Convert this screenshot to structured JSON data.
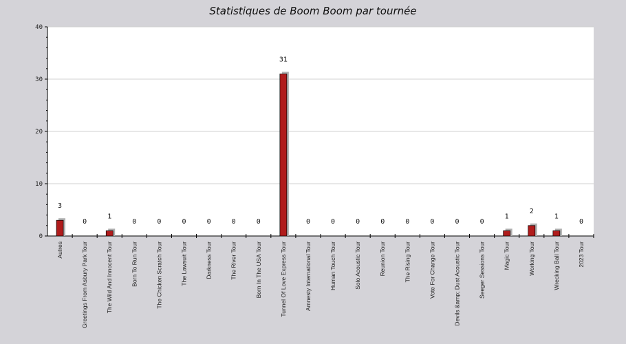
{
  "chart_data": {
    "type": "bar",
    "title": "Statistiques de Boom Boom par tournée",
    "xlabel": "",
    "ylabel": "",
    "ylim": [
      0,
      40
    ],
    "yticks": [
      0,
      10,
      20,
      30,
      40
    ],
    "grid": true,
    "colors": {
      "bar": "#b01c1c",
      "shadow": "#b0b0b0",
      "plot_bg": "#ffffff",
      "page_bg": "#d4d3d8",
      "grid": "#d0d0d0"
    },
    "categories": [
      "Autres",
      "Greetings From Asbury Park Tour",
      "The Wild And Innocent Tour",
      "Born To Run Tour",
      "The Chicken Scratch Tour",
      "The Lawsuit Tour",
      "Darkness Tour",
      "The River Tour",
      "Born In The USA Tour",
      "Tunnel Of Love Express Tour",
      "Amnesty International Tour",
      "Human Touch Tour",
      "Solo Acoustic Tour",
      "Reunion Tour",
      "The Rising Tour",
      "Vote For Change Tour",
      "Devils &amp; Dust Acoustic Tour",
      "Seeger Sessions Tour",
      "Magic Tour",
      "Working Tour",
      "Wrecking Ball Tour",
      "2023 Tour"
    ],
    "values": [
      3,
      0,
      1,
      0,
      0,
      0,
      0,
      0,
      0,
      31,
      0,
      0,
      0,
      0,
      0,
      0,
      0,
      0,
      1,
      2,
      1,
      0
    ]
  }
}
